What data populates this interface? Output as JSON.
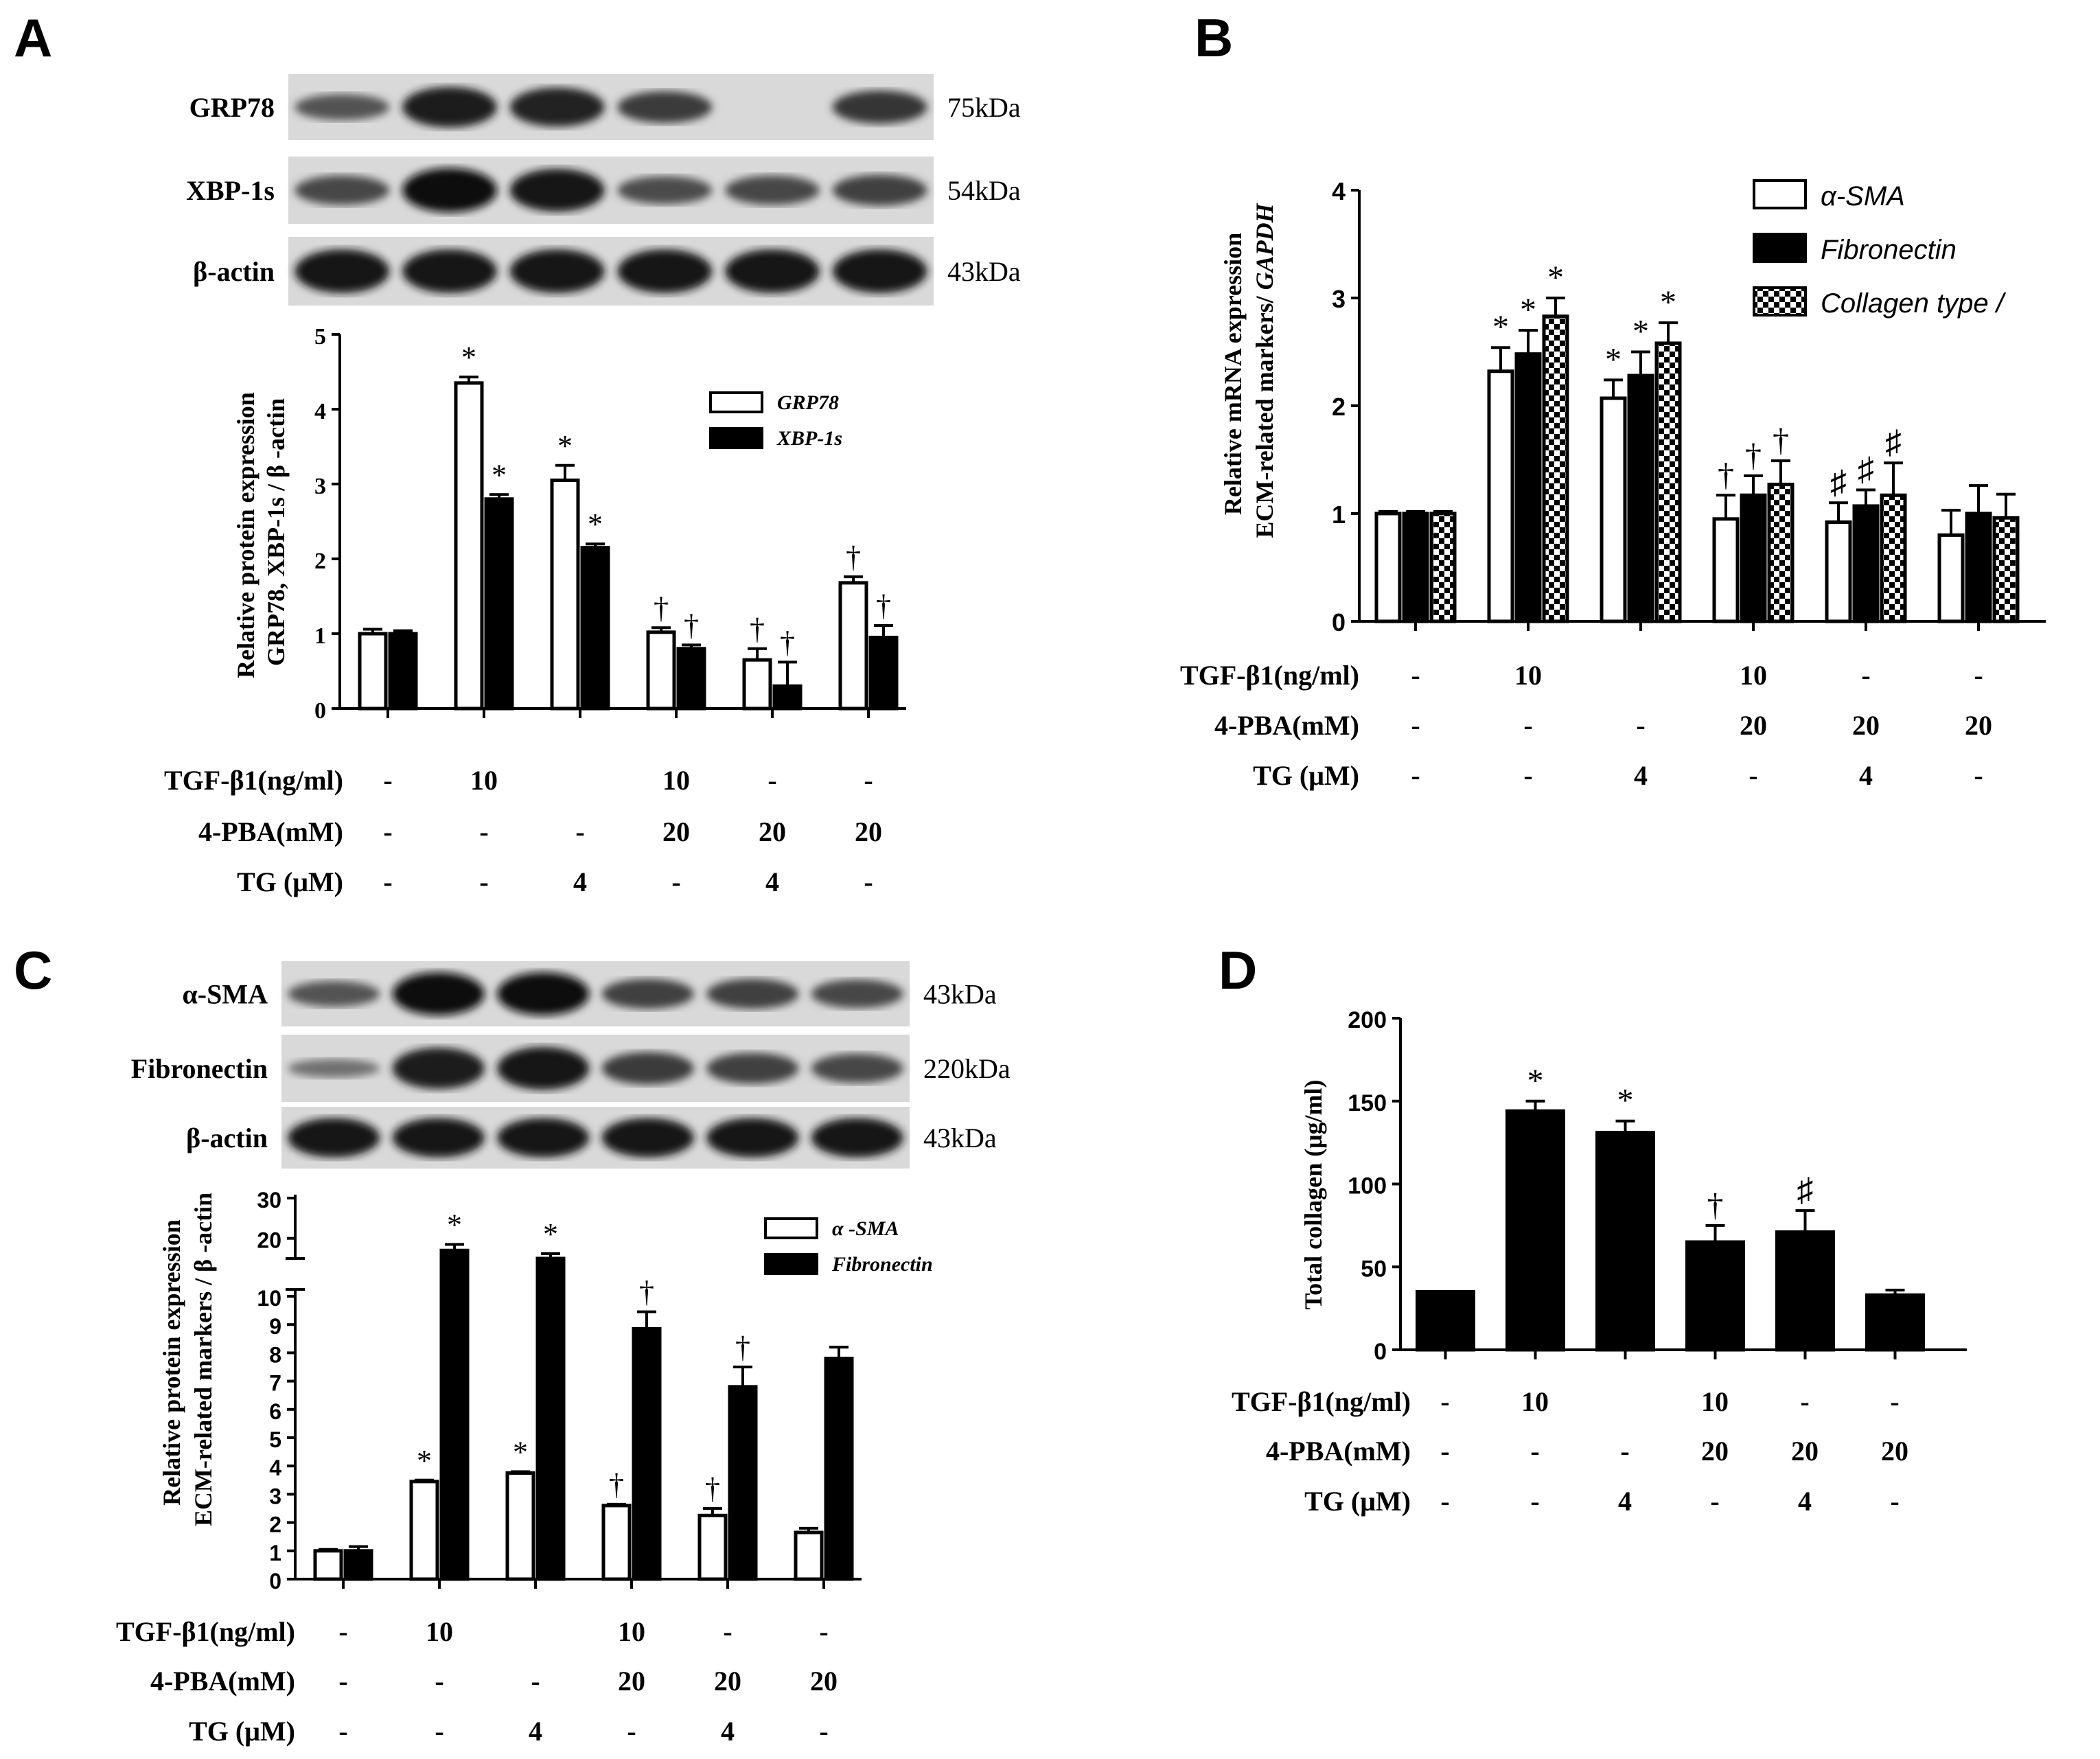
{
  "conditions_table": {
    "row_labels": [
      "TGF-β1(ng/ml)",
      "4-PBA(mM)",
      "TG (μM)"
    ],
    "tgf": [
      "-",
      "10",
      "",
      "10",
      "-",
      "-"
    ],
    "pba": [
      "-",
      "-",
      "-",
      "20",
      "20",
      "20"
    ],
    "tg": [
      "-",
      "-",
      "4",
      "-",
      "4",
      "-"
    ]
  },
  "panels": {
    "A": {
      "label": "A",
      "blots": [
        {
          "name": "GRP78",
          "kda": "75kDa"
        },
        {
          "name": "XBP-1s",
          "kda": "54kDa"
        },
        {
          "name": "β-actin",
          "kda": "43kDa"
        }
      ],
      "ylabel_line1": "Relative protein expression",
      "ylabel_line2": "GRP78, XBP-1s / β -actin"
    },
    "B": {
      "label": "B",
      "ylabel_line1": "Relative mRNA expression",
      "ylabel_line2a": "ECM-related markers/ ",
      "ylabel_line2b": "GAPDH"
    },
    "C": {
      "label": "C",
      "blots": [
        {
          "name": "α-SMA",
          "kda": "43kDa"
        },
        {
          "name": "Fibronectin",
          "kda": "220kDa"
        },
        {
          "name": "β-actin",
          "kda": "43kDa"
        }
      ],
      "ylabel_line1": "Relative protein expression",
      "ylabel_line2": "ECM-related markers / β -actin"
    },
    "D": {
      "label": "D",
      "ylabel": "Total collagen (μg/ml)"
    }
  },
  "chart_data": [
    {
      "panel": "A",
      "type": "bar",
      "categories": [
        "1",
        "2",
        "3",
        "4",
        "5",
        "6"
      ],
      "ylim": [
        0,
        5
      ],
      "yticks": [
        0,
        1,
        2,
        3,
        4,
        5
      ],
      "series": [
        {
          "name": "GRP78",
          "fill": "open",
          "values": [
            1.0,
            4.35,
            3.05,
            1.02,
            0.65,
            1.68
          ],
          "errors": [
            0.06,
            0.08,
            0.2,
            0.06,
            0.15,
            0.08
          ],
          "marks": [
            "",
            "*",
            "*",
            "†",
            "†",
            "†"
          ]
        },
        {
          "name": "XBP-1s",
          "fill": "solid",
          "values": [
            1.0,
            2.8,
            2.15,
            0.8,
            0.3,
            0.95
          ],
          "errors": [
            0.04,
            0.06,
            0.05,
            0.05,
            0.32,
            0.16
          ],
          "marks": [
            "",
            "*",
            "*",
            "†",
            "†",
            "†"
          ]
        }
      ]
    },
    {
      "panel": "B",
      "type": "bar",
      "categories": [
        "1",
        "2",
        "3",
        "4",
        "5",
        "6"
      ],
      "ylim": [
        0,
        4
      ],
      "yticks": [
        0,
        1,
        2,
        3,
        4
      ],
      "series": [
        {
          "name": "α-SMA",
          "fill": "open",
          "values": [
            1.0,
            2.32,
            2.07,
            0.95,
            0.92,
            0.8
          ],
          "errors": [
            0.02,
            0.22,
            0.17,
            0.22,
            0.18,
            0.23
          ],
          "marks": [
            "",
            "*",
            "*",
            "†",
            "♯",
            ""
          ]
        },
        {
          "name": "Fibronectin",
          "fill": "solid",
          "values": [
            1.0,
            2.48,
            2.28,
            1.17,
            1.07,
            1.0
          ],
          "errors": [
            0.02,
            0.22,
            0.22,
            0.18,
            0.15,
            0.26
          ],
          "marks": [
            "",
            "*",
            "*",
            "†",
            "♯",
            ""
          ]
        },
        {
          "name": "Collagen type /",
          "fill": "checker",
          "values": [
            1.0,
            2.83,
            2.58,
            1.27,
            1.17,
            0.96
          ],
          "errors": [
            0.02,
            0.17,
            0.19,
            0.22,
            0.3,
            0.22
          ],
          "marks": [
            "",
            "*",
            "*",
            "†",
            "♯",
            ""
          ]
        }
      ]
    },
    {
      "panel": "C",
      "type": "bar",
      "categories": [
        "1",
        "2",
        "3",
        "4",
        "5",
        "6"
      ],
      "ylim": [
        0,
        30
      ],
      "axis_break": [
        10,
        15
      ],
      "yticks": [
        0,
        1,
        2,
        3,
        4,
        5,
        6,
        7,
        8,
        9,
        10,
        20,
        30
      ],
      "series": [
        {
          "name": "α -SMA",
          "fill": "open",
          "values": [
            1.0,
            3.45,
            3.75,
            2.6,
            2.25,
            1.65
          ],
          "errors": [
            0.05,
            0.05,
            0.05,
            0.05,
            0.25,
            0.15
          ],
          "marks": [
            "",
            "*",
            "*",
            "†",
            "†",
            ""
          ]
        },
        {
          "name": "Fibronectin",
          "fill": "solid",
          "values": [
            1.0,
            17.0,
            15.0,
            8.85,
            6.8,
            7.8
          ],
          "errors": [
            0.15,
            1.5,
            1.2,
            0.6,
            0.7,
            0.4
          ],
          "marks": [
            "",
            "*",
            "*",
            "†",
            "†",
            ""
          ]
        }
      ]
    },
    {
      "panel": "D",
      "type": "bar",
      "categories": [
        "1",
        "2",
        "3",
        "4",
        "5",
        "6"
      ],
      "ylim": [
        0,
        200
      ],
      "yticks": [
        0,
        50,
        100,
        150,
        200
      ],
      "series": [
        {
          "name": "Total collagen",
          "fill": "solid",
          "values": [
            35,
            144,
            131,
            65,
            71,
            33
          ],
          "errors": [
            0,
            6,
            7,
            10,
            13,
            3
          ],
          "marks": [
            "",
            "*",
            "*",
            "†",
            "♯",
            ""
          ]
        }
      ]
    }
  ]
}
